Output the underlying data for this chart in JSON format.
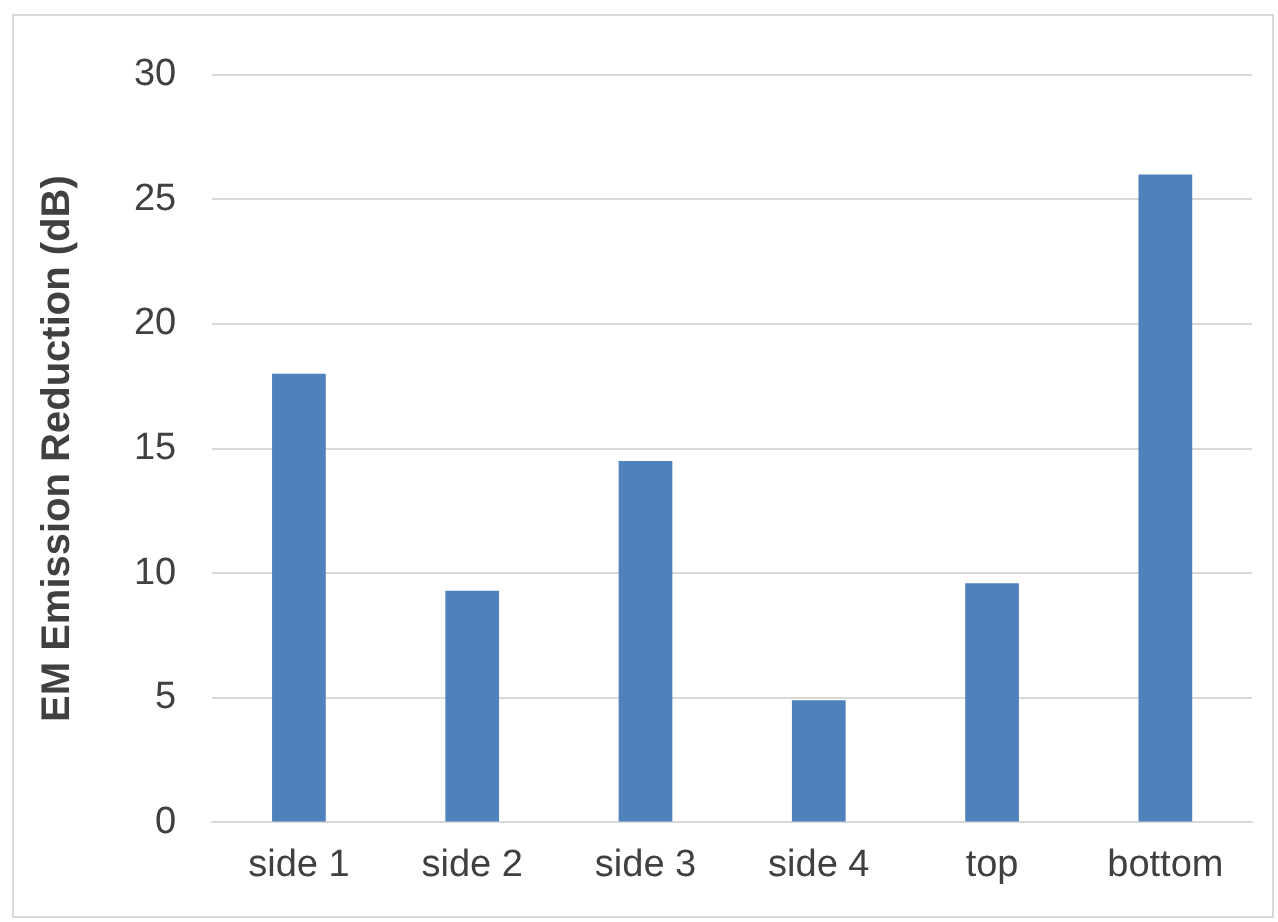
{
  "chart_data": {
    "type": "bar",
    "ylabel": "EM Emission Reduction (dB)",
    "categories": [
      "side 1",
      "side 2",
      "side 3",
      "side 4",
      "top",
      "bottom"
    ],
    "values": [
      18,
      9.3,
      14.5,
      4.9,
      9.6,
      26
    ],
    "color": "#4f81bd",
    "ylim": [
      0,
      30
    ],
    "yticks": [
      0,
      5,
      10,
      15,
      20,
      25,
      30
    ],
    "grid": "y",
    "legend": false
  }
}
